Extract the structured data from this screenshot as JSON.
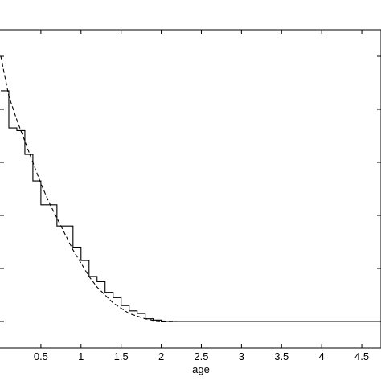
{
  "chart_data": {
    "type": "line",
    "title": "",
    "xlabel": "age",
    "ylabel": "",
    "xlim": [
      0.0,
      4.75
    ],
    "ylim": [
      0.0,
      1.0
    ],
    "x_ticks": [
      0.5,
      1,
      1.5,
      2,
      2.5,
      3,
      3.5,
      4,
      4.5
    ],
    "x_tick_labels": [
      "0.5",
      "1",
      "1.5",
      "2",
      "2.5",
      "3",
      "3.5",
      "4",
      "4.5"
    ],
    "y_ticks": [
      0.0,
      0.2,
      0.4,
      0.6,
      0.8,
      1.0
    ],
    "grid": false,
    "series": [
      {
        "style": "solid-step",
        "color": "#000000",
        "x": [
          0.0,
          0.1,
          0.2,
          0.3,
          0.4,
          0.5,
          0.6,
          0.7,
          0.8,
          0.9,
          1.0,
          1.1,
          1.2,
          1.3,
          1.4,
          1.5,
          1.6,
          1.7,
          1.8,
          1.9,
          2.0,
          4.75
        ],
        "y": [
          0.87,
          0.73,
          0.72,
          0.63,
          0.53,
          0.44,
          0.44,
          0.36,
          0.36,
          0.28,
          0.23,
          0.17,
          0.15,
          0.11,
          0.09,
          0.06,
          0.04,
          0.03,
          0.01,
          0.005,
          0.0,
          0.0
        ]
      },
      {
        "style": "dashed",
        "color": "#000000",
        "x": [
          0.0,
          0.1,
          0.2,
          0.3,
          0.4,
          0.5,
          0.6,
          0.7,
          0.8,
          0.9,
          1.0,
          1.1,
          1.2,
          1.3,
          1.4,
          1.5,
          1.6,
          1.7,
          1.8,
          1.9,
          2.0,
          2.2,
          2.5,
          3.0,
          3.5,
          4.0,
          4.5,
          4.75
        ],
        "y": [
          1.0,
          0.85,
          0.76,
          0.68,
          0.6,
          0.52,
          0.45,
          0.39,
          0.33,
          0.27,
          0.22,
          0.17,
          0.13,
          0.1,
          0.07,
          0.05,
          0.03,
          0.02,
          0.01,
          0.004,
          0.002,
          0.0,
          0.0,
          0.0,
          0.0,
          0.0,
          0.0,
          0.0
        ]
      }
    ]
  }
}
